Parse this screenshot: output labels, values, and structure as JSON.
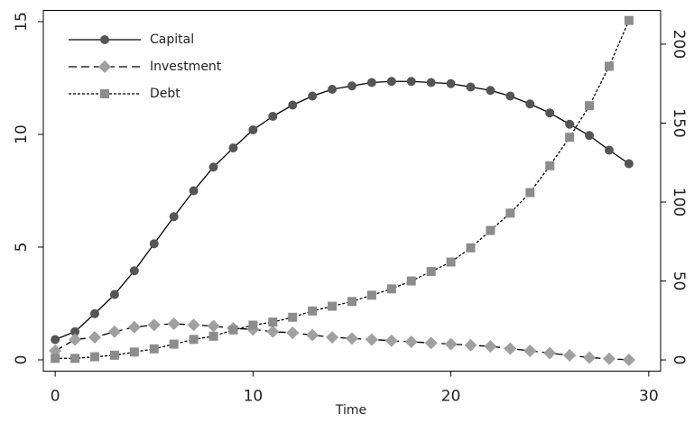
{
  "chart_data": {
    "type": "line",
    "x_label": "Time",
    "x": [
      0,
      1,
      2,
      3,
      4,
      5,
      6,
      7,
      8,
      9,
      10,
      11,
      12,
      13,
      14,
      15,
      16,
      17,
      18,
      19,
      20,
      21,
      22,
      23,
      24,
      25,
      26,
      27,
      28,
      29
    ],
    "series": [
      {
        "name": "Capital",
        "color": "#555555",
        "marker": "circle",
        "dash": "solid",
        "values": [
          0.9,
          1.25,
          2.05,
          2.9,
          3.95,
          5.15,
          6.35,
          7.5,
          8.55,
          9.4,
          10.2,
          10.8,
          11.3,
          11.7,
          12.0,
          12.15,
          12.3,
          12.35,
          12.35,
          12.3,
          12.25,
          12.1,
          11.95,
          11.7,
          11.35,
          10.95,
          10.45,
          9.95,
          9.3,
          8.7
        ]
      },
      {
        "name": "Investment",
        "color": "#a0a0a0",
        "marker": "diamond",
        "dash": "dashed",
        "values": [
          0.4,
          0.9,
          1.0,
          1.25,
          1.45,
          1.55,
          1.6,
          1.55,
          1.5,
          1.4,
          1.35,
          1.25,
          1.2,
          1.1,
          1.0,
          0.95,
          0.9,
          0.85,
          0.8,
          0.75,
          0.7,
          0.65,
          0.6,
          0.5,
          0.4,
          0.3,
          0.2,
          0.1,
          0.05,
          0.0
        ]
      },
      {
        "name": "Debt",
        "color": "#8c8c8c",
        "marker": "square",
        "dash": "dotted",
        "axis": "y2",
        "values": [
          1,
          1,
          2,
          3,
          5,
          7,
          10,
          13,
          15,
          19,
          22,
          24,
          27,
          31,
          34,
          37,
          41,
          45,
          50,
          56,
          62,
          71,
          82,
          93,
          106,
          123,
          141,
          161,
          186,
          215
        ]
      }
    ],
    "xlim": [
      -0.6,
      30.6
    ],
    "xticks": [
      0,
      10,
      20,
      30
    ],
    "ylim": [
      -0.5,
      15.5
    ],
    "yticks": [
      0,
      5,
      10,
      15
    ],
    "y2lim": [
      -7.1,
      221.4
    ],
    "y2ticks": [
      0,
      50,
      100,
      150,
      200
    ],
    "legend": "top-left"
  }
}
